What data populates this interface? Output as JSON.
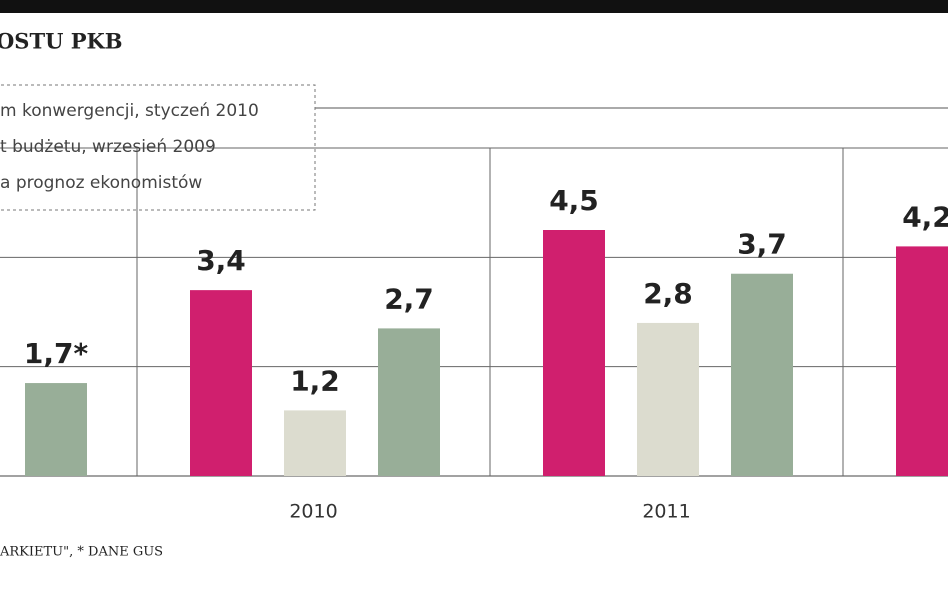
{
  "chart_data": {
    "type": "bar",
    "title": "OSTU PKB",
    "categories": [
      null,
      "2010",
      "2011",
      null
    ],
    "series": [
      {
        "name": "m konwergencji, styczeń 2010",
        "color": "#d01f6e",
        "values": [
          null,
          3.4,
          4.5,
          4.2
        ],
        "value_labels": [
          null,
          "3,4",
          "4,5",
          "4,2"
        ]
      },
      {
        "name": "t budżetu, wrzesień 2009",
        "color": "#dcdccf",
        "values": [
          null,
          1.2,
          2.8,
          null
        ],
        "value_labels": [
          null,
          "1,2",
          "2,8",
          null
        ]
      },
      {
        "name": "a prognoz ekonomistów",
        "color": "#98ae98",
        "values": [
          1.7,
          2.7,
          3.7,
          null
        ],
        "value_labels": [
          "1,7*",
          "2,7",
          "3,7",
          null
        ]
      }
    ],
    "ylim": [
      0,
      6
    ],
    "yticks": [
      0,
      2,
      4,
      6
    ],
    "grid": true,
    "source": "ARKIETU\", * DANE GUS"
  }
}
